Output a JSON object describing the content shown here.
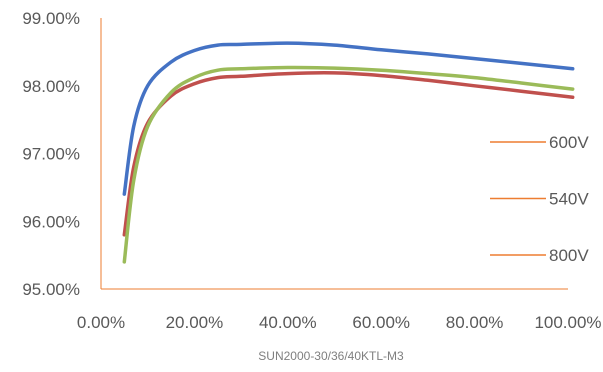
{
  "chart_data": {
    "type": "line",
    "caption": "SUN2000-30/36/40KTL-M3",
    "xlim": [
      0,
      100
    ],
    "ylim": [
      95,
      99
    ],
    "x_ticks": [
      0,
      20,
      40,
      60,
      80,
      100
    ],
    "x_tick_labels": [
      "0.00%",
      "20.00%",
      "40.00%",
      "60.00%",
      "80.00%",
      "100.00%"
    ],
    "y_ticks": [
      95,
      96,
      97,
      98,
      99
    ],
    "y_tick_labels": [
      "95.00%",
      "96.00%",
      "97.00%",
      "98.00%",
      "99.00%"
    ],
    "legend": {
      "placement": "right",
      "entries": [
        "600V",
        "540V",
        "800V"
      ],
      "color": "#ED7D31"
    },
    "series": [
      {
        "color": "#4472C4",
        "x": [
          5,
          7,
          10,
          15,
          20,
          25,
          30,
          40,
          50,
          60,
          70,
          80,
          90,
          101
        ],
        "y": [
          96.4,
          97.4,
          98.0,
          98.35,
          98.52,
          98.6,
          98.61,
          98.63,
          98.6,
          98.53,
          98.47,
          98.4,
          98.33,
          98.25
        ]
      },
      {
        "color": "#9BBB59",
        "x": [
          5,
          7,
          10,
          15,
          20,
          25,
          30,
          40,
          50,
          60,
          70,
          80,
          90,
          101
        ],
        "y": [
          95.4,
          96.6,
          97.4,
          97.9,
          98.12,
          98.23,
          98.25,
          98.27,
          98.26,
          98.23,
          98.18,
          98.12,
          98.04,
          97.95
        ]
      },
      {
        "color": "#C0504D",
        "x": [
          5,
          7,
          10,
          15,
          20,
          25,
          30,
          40,
          50,
          60,
          70,
          80,
          90,
          101
        ],
        "y": [
          95.8,
          96.8,
          97.45,
          97.85,
          98.03,
          98.12,
          98.14,
          98.18,
          98.19,
          98.15,
          98.08,
          98.0,
          97.92,
          97.83
        ]
      }
    ]
  }
}
